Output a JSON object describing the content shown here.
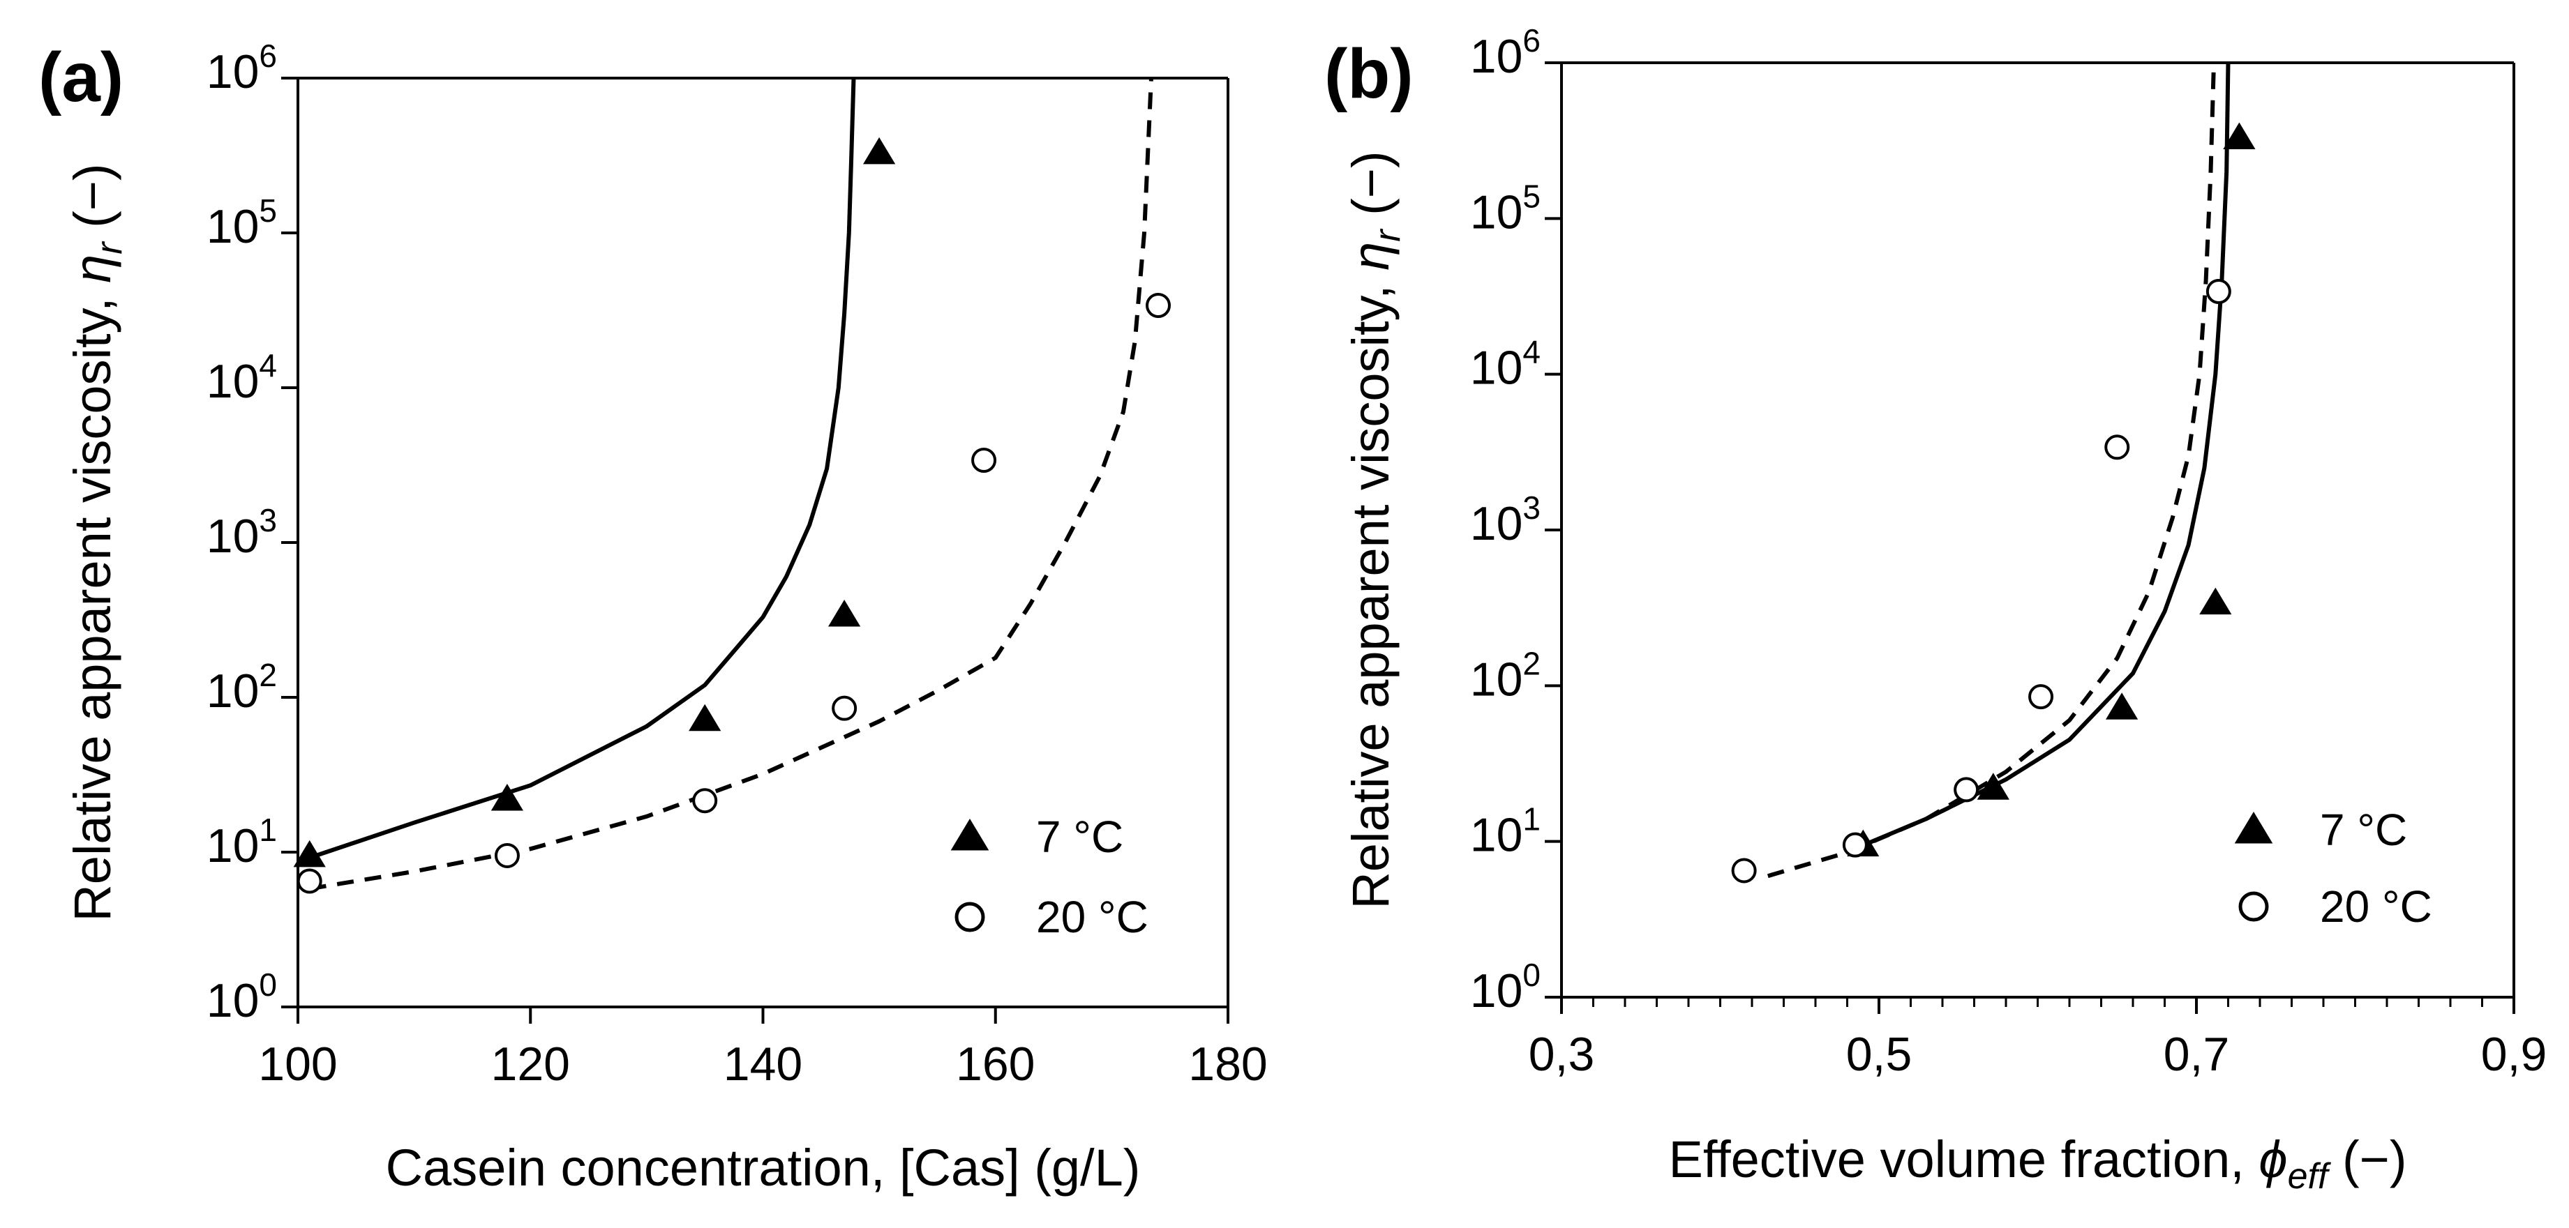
{
  "chart_data": [
    {
      "type": "line",
      "panel_label": "(a)",
      "xlabel": "Casein concentration, [Cas] (g/L)",
      "ylabel": "Relative apparent viscosity, ηr (−)",
      "ylabel_parts": {
        "prefix": "Relative apparent viscosity, ",
        "symbol": "η",
        "subscript": "r",
        "suffix": " (−)"
      },
      "xscale": "linear",
      "yscale": "log",
      "xlim": [
        100,
        180
      ],
      "ylim": [
        1,
        1000000
      ],
      "x_ticks": [
        100,
        120,
        140,
        160,
        180
      ],
      "x_tick_labels": [
        "100",
        "120",
        "140",
        "160",
        "180"
      ],
      "y_ticks": [
        1,
        10,
        100,
        1000,
        10000,
        100000,
        1000000
      ],
      "y_tick_labels": [
        {
          "base": "10",
          "exp": "0"
        },
        {
          "base": "10",
          "exp": "1"
        },
        {
          "base": "10",
          "exp": "2"
        },
        {
          "base": "10",
          "exp": "3"
        },
        {
          "base": "10",
          "exp": "4"
        },
        {
          "base": "10",
          "exp": "5"
        },
        {
          "base": "10",
          "exp": "6"
        }
      ],
      "legend": {
        "position": "lower-right",
        "entries": [
          {
            "label": "7 °C",
            "marker": "filled-triangle"
          },
          {
            "label": "20 °C",
            "marker": "open-circle"
          }
        ]
      },
      "series": [
        {
          "name": "7 °C",
          "kind": "scatter",
          "marker": "filled-triangle",
          "points": [
            [
              101,
              9.5
            ],
            [
              118,
              22
            ],
            [
              135,
              72
            ],
            [
              147,
              340
            ],
            [
              150,
              330000
            ]
          ]
        },
        {
          "name": "20 °C",
          "kind": "scatter",
          "marker": "open-circle",
          "points": [
            [
              101,
              6.5
            ],
            [
              118,
              9.5
            ],
            [
              135,
              21.5
            ],
            [
              147,
              85
            ],
            [
              159,
              3400
            ],
            [
              174,
              34000
            ]
          ]
        },
        {
          "name": "7 °C model",
          "kind": "line",
          "style": "solid",
          "points": [
            [
              101,
              9.2
            ],
            [
              110,
              15.5
            ],
            [
              120,
              27
            ],
            [
              130,
              65
            ],
            [
              135,
              120
            ],
            [
              138,
              220
            ],
            [
              140,
              330
            ],
            [
              142,
              600
            ],
            [
              144,
              1300
            ],
            [
              145.5,
              3000
            ],
            [
              146.5,
              10000
            ],
            [
              147,
              30000
            ],
            [
              147.4,
              100000
            ],
            [
              147.6,
              300000
            ],
            [
              147.8,
              1000000
            ]
          ]
        },
        {
          "name": "20 °C model",
          "kind": "line",
          "style": "dashed",
          "points": [
            [
              101,
              5.8
            ],
            [
              110,
              7.5
            ],
            [
              120,
              10.5
            ],
            [
              130,
              17
            ],
            [
              140,
              32
            ],
            [
              150,
              70
            ],
            [
              155,
              110
            ],
            [
              160,
              180
            ],
            [
              163,
              400
            ],
            [
              166,
              1000
            ],
            [
              169,
              2700
            ],
            [
              171,
              7000
            ],
            [
              172,
              20000
            ],
            [
              172.8,
              100000
            ],
            [
              173.4,
              1000000
            ]
          ]
        }
      ]
    },
    {
      "type": "line",
      "panel_label": "(b)",
      "xlabel": "Effective volume fraction, ϕeff (−)",
      "xlabel_parts": {
        "prefix": "Effective volume fraction, ",
        "symbol": "ϕ",
        "subscript": "eff",
        "suffix": " (−)"
      },
      "ylabel": "Relative apparent viscosity, ηr (−)",
      "ylabel_parts": {
        "prefix": "Relative apparent viscosity, ",
        "symbol": "η",
        "subscript": "r",
        "suffix": " (−)"
      },
      "xscale": "linear",
      "yscale": "log",
      "xlim": [
        0.3,
        0.9
      ],
      "ylim": [
        1,
        1000000
      ],
      "x_ticks": [
        0.3,
        0.5,
        0.7,
        0.9
      ],
      "x_tick_labels": [
        "0,3",
        "0,5",
        "0,7",
        "0,9"
      ],
      "x_minor_step": 0.02,
      "y_ticks": [
        1,
        10,
        100,
        1000,
        10000,
        100000,
        1000000
      ],
      "y_tick_labels": [
        {
          "base": "10",
          "exp": "0"
        },
        {
          "base": "10",
          "exp": "1"
        },
        {
          "base": "10",
          "exp": "2"
        },
        {
          "base": "10",
          "exp": "3"
        },
        {
          "base": "10",
          "exp": "4"
        },
        {
          "base": "10",
          "exp": "5"
        },
        {
          "base": "10",
          "exp": "6"
        }
      ],
      "legend": {
        "position": "lower-right",
        "entries": [
          {
            "label": "7 °C",
            "marker": "filled-triangle"
          },
          {
            "label": "20 °C",
            "marker": "open-circle"
          }
        ]
      },
      "series": [
        {
          "name": "7 °C",
          "kind": "scatter",
          "marker": "filled-triangle",
          "points": [
            [
              0.49,
              9.5
            ],
            [
              0.572,
              22
            ],
            [
              0.653,
              72
            ],
            [
              0.712,
              340
            ],
            [
              0.727,
              330000
            ]
          ]
        },
        {
          "name": "20 °C",
          "kind": "scatter",
          "marker": "open-circle",
          "points": [
            [
              0.415,
              6.5
            ],
            [
              0.485,
              9.5
            ],
            [
              0.555,
              21.5
            ],
            [
              0.602,
              85
            ],
            [
              0.65,
              3400
            ],
            [
              0.714,
              34000
            ]
          ]
        },
        {
          "name": "7 °C model",
          "kind": "line",
          "style": "solid",
          "points": [
            [
              0.485,
              9
            ],
            [
              0.53,
              14
            ],
            [
              0.58,
              25
            ],
            [
              0.62,
              45
            ],
            [
              0.66,
              120
            ],
            [
              0.68,
              300
            ],
            [
              0.695,
              800
            ],
            [
              0.705,
              2500
            ],
            [
              0.712,
              10000
            ],
            [
              0.716,
              40000
            ],
            [
              0.719,
              200000
            ],
            [
              0.72,
              1000000
            ]
          ]
        },
        {
          "name": "20 °C model",
          "kind": "line",
          "style": "dashed",
          "points": [
            [
              0.43,
              6
            ],
            [
              0.48,
              8.5
            ],
            [
              0.53,
              14
            ],
            [
              0.58,
              28
            ],
            [
              0.62,
              60
            ],
            [
              0.65,
              150
            ],
            [
              0.67,
              400
            ],
            [
              0.685,
              1200
            ],
            [
              0.695,
              3000
            ],
            [
              0.702,
              10000
            ],
            [
              0.706,
              40000
            ],
            [
              0.709,
              200000
            ],
            [
              0.711,
              1000000
            ]
          ]
        }
      ]
    }
  ]
}
